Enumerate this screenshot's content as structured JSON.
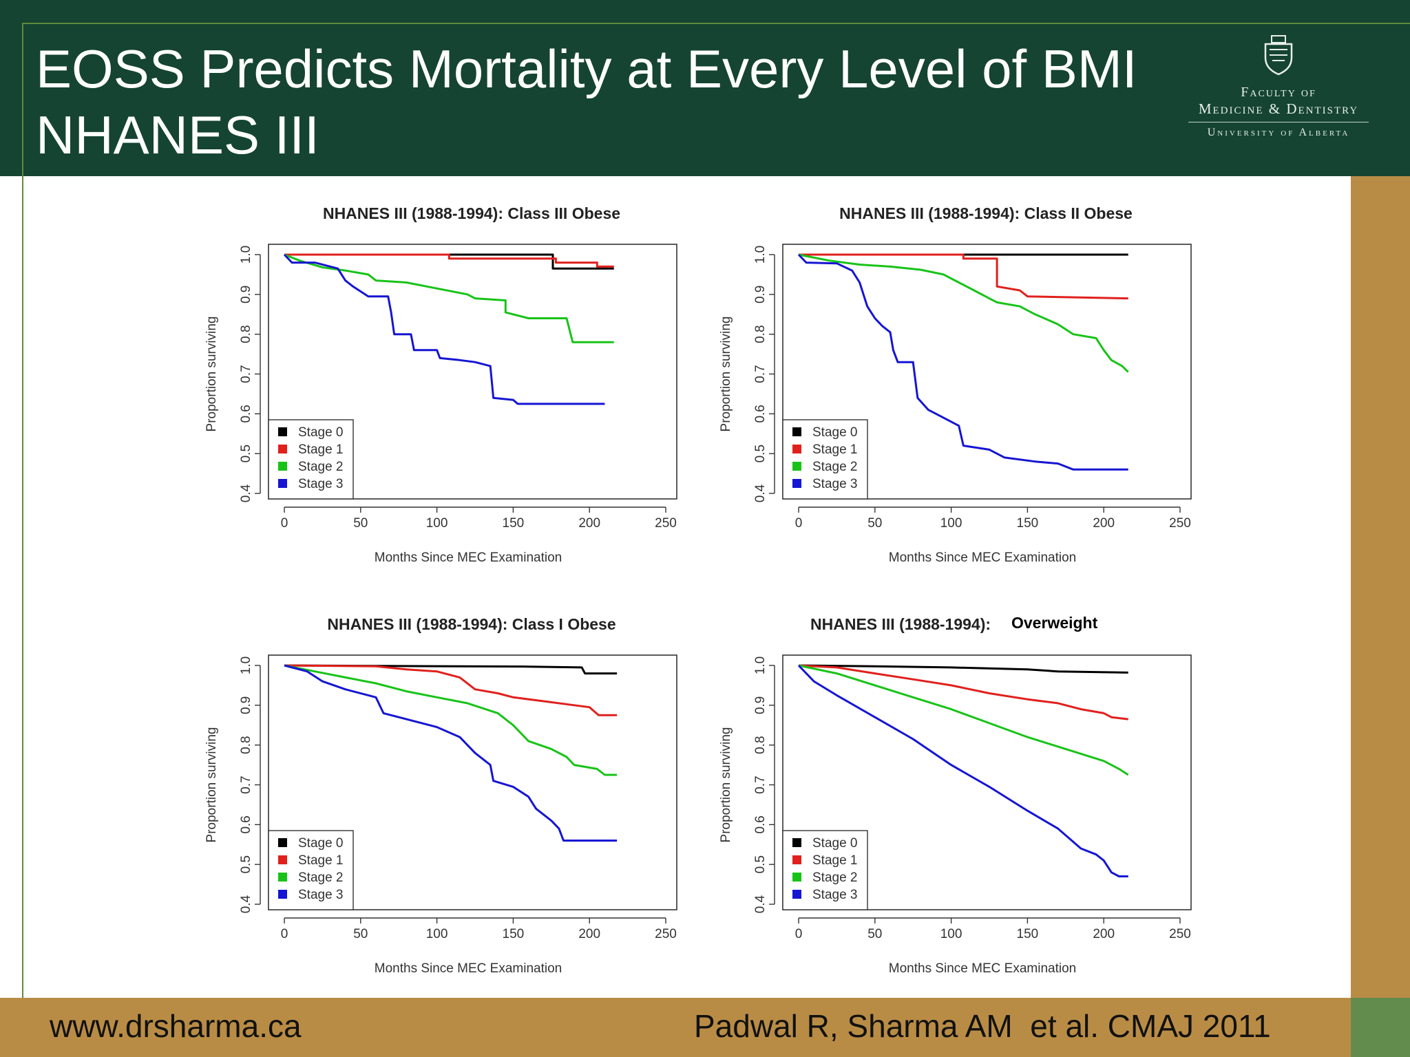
{
  "slide": {
    "title_line1": "EOSS Predicts Mortality at Every Level of BMI",
    "title_line2": "NHANES III",
    "logo_line1": "Faculty of",
    "logo_line2": "Medicine & Dentistry",
    "logo_line3": "University of Alberta",
    "footer_left": "www.drsharma.ca",
    "footer_right": "Padwal R, Sharma AM  et al. CMAJ 2011",
    "colors": {
      "header": "#154432",
      "accent_gold": "#b98c45",
      "accent_green": "#628b4e"
    }
  },
  "chart_data": [
    {
      "type": "line",
      "title": "NHANES III (1988-1994): Class III Obese",
      "xlabel": "Months Since MEC Examination",
      "ylabel": "Proportion surviving",
      "xlim": [
        0,
        250
      ],
      "ylim": [
        0.4,
        1.0
      ],
      "xticks": [
        "0",
        "50",
        "100",
        "150",
        "200",
        "250"
      ],
      "yticks": [
        "0.4",
        "0.5",
        "0.6",
        "0.7",
        "0.8",
        "0.9",
        "1.0"
      ],
      "legend": [
        "Stage 0",
        "Stage 1",
        "Stage 2",
        "Stage 3"
      ],
      "series": [
        {
          "name": "Stage 0",
          "color": "#000000",
          "points": [
            [
              0,
              1.0
            ],
            [
              176,
              1.0
            ],
            [
              176,
              0.965
            ],
            [
              216,
              0.965
            ]
          ]
        },
        {
          "name": "Stage 1",
          "color": "#e0201c",
          "points": [
            [
              0,
              1.0
            ],
            [
              108,
              1.0
            ],
            [
              108,
              0.99
            ],
            [
              178,
              0.99
            ],
            [
              178,
              0.98
            ],
            [
              205,
              0.98
            ],
            [
              205,
              0.97
            ],
            [
              216,
              0.97
            ]
          ]
        },
        {
          "name": "Stage 2",
          "color": "#18c318",
          "points": [
            [
              0,
              1.0
            ],
            [
              10,
              0.985
            ],
            [
              25,
              0.968
            ],
            [
              40,
              0.96
            ],
            [
              55,
              0.95
            ],
            [
              60,
              0.935
            ],
            [
              80,
              0.93
            ],
            [
              100,
              0.915
            ],
            [
              120,
              0.9
            ],
            [
              125,
              0.89
            ],
            [
              145,
              0.885
            ],
            [
              145,
              0.855
            ],
            [
              160,
              0.84
            ],
            [
              185,
              0.84
            ],
            [
              189,
              0.78
            ],
            [
              216,
              0.78
            ]
          ]
        },
        {
          "name": "Stage 3",
          "color": "#1515d3",
          "points": [
            [
              0,
              1.0
            ],
            [
              5,
              0.98
            ],
            [
              20,
              0.98
            ],
            [
              35,
              0.965
            ],
            [
              40,
              0.935
            ],
            [
              45,
              0.92
            ],
            [
              55,
              0.895
            ],
            [
              68,
              0.895
            ],
            [
              70,
              0.855
            ],
            [
              72,
              0.8
            ],
            [
              83,
              0.8
            ],
            [
              85,
              0.76
            ],
            [
              100,
              0.76
            ],
            [
              102,
              0.74
            ],
            [
              115,
              0.735
            ],
            [
              125,
              0.73
            ],
            [
              135,
              0.72
            ],
            [
              137,
              0.64
            ],
            [
              150,
              0.635
            ],
            [
              153,
              0.625
            ],
            [
              210,
              0.625
            ]
          ]
        }
      ]
    },
    {
      "type": "line",
      "title": "NHANES III (1988-1994): Class II Obese",
      "xlabel": "Months Since MEC Examination",
      "ylabel": "Proportion surviving",
      "xlim": [
        0,
        250
      ],
      "ylim": [
        0.4,
        1.0
      ],
      "xticks": [
        "0",
        "50",
        "100",
        "150",
        "200",
        "250"
      ],
      "yticks": [
        "0.4",
        "0.5",
        "0.6",
        "0.7",
        "0.8",
        "0.9",
        "1.0"
      ],
      "legend": [
        "Stage 0",
        "Stage 1",
        "Stage 2",
        "Stage 3"
      ],
      "series": [
        {
          "name": "Stage 0",
          "color": "#000000",
          "points": [
            [
              0,
              1.0
            ],
            [
              216,
              1.0
            ]
          ]
        },
        {
          "name": "Stage 1",
          "color": "#e0201c",
          "points": [
            [
              0,
              1.0
            ],
            [
              108,
              1.0
            ],
            [
              108,
              0.99
            ],
            [
              130,
              0.99
            ],
            [
              130,
              0.92
            ],
            [
              145,
              0.91
            ],
            [
              150,
              0.895
            ],
            [
              216,
              0.89
            ]
          ]
        },
        {
          "name": "Stage 2",
          "color": "#18c318",
          "points": [
            [
              0,
              1.0
            ],
            [
              20,
              0.985
            ],
            [
              40,
              0.975
            ],
            [
              60,
              0.97
            ],
            [
              80,
              0.962
            ],
            [
              95,
              0.95
            ],
            [
              105,
              0.93
            ],
            [
              115,
              0.91
            ],
            [
              130,
              0.88
            ],
            [
              145,
              0.87
            ],
            [
              155,
              0.85
            ],
            [
              170,
              0.825
            ],
            [
              180,
              0.8
            ],
            [
              195,
              0.79
            ],
            [
              200,
              0.76
            ],
            [
              205,
              0.735
            ],
            [
              212,
              0.72
            ],
            [
              216,
              0.705
            ]
          ]
        },
        {
          "name": "Stage 3",
          "color": "#1515d3",
          "points": [
            [
              0,
              1.0
            ],
            [
              5,
              0.98
            ],
            [
              25,
              0.978
            ],
            [
              35,
              0.96
            ],
            [
              40,
              0.93
            ],
            [
              45,
              0.87
            ],
            [
              50,
              0.84
            ],
            [
              55,
              0.82
            ],
            [
              60,
              0.805
            ],
            [
              62,
              0.76
            ],
            [
              65,
              0.73
            ],
            [
              75,
              0.73
            ],
            [
              78,
              0.64
            ],
            [
              85,
              0.61
            ],
            [
              95,
              0.59
            ],
            [
              105,
              0.57
            ],
            [
              108,
              0.52
            ],
            [
              125,
              0.51
            ],
            [
              135,
              0.49
            ],
            [
              155,
              0.48
            ],
            [
              170,
              0.475
            ],
            [
              180,
              0.46
            ],
            [
              216,
              0.46
            ]
          ]
        }
      ]
    },
    {
      "type": "line",
      "title": "NHANES III (1988-1994): Class I Obese",
      "xlabel": "Months Since MEC Examination",
      "ylabel": "Proportion surviving",
      "xlim": [
        0,
        250
      ],
      "ylim": [
        0.4,
        1.0
      ],
      "xticks": [
        "0",
        "50",
        "100",
        "150",
        "200",
        "250"
      ],
      "yticks": [
        "0.4",
        "0.5",
        "0.6",
        "0.7",
        "0.8",
        "0.9",
        "1.0"
      ],
      "legend": [
        "Stage 0",
        "Stage 1",
        "Stage 2",
        "Stage 3"
      ],
      "series": [
        {
          "name": "Stage 0",
          "color": "#000000",
          "points": [
            [
              0,
              1.0
            ],
            [
              160,
              0.997
            ],
            [
              195,
              0.995
            ],
            [
              197,
              0.98
            ],
            [
              218,
              0.98
            ]
          ]
        },
        {
          "name": "Stage 1",
          "color": "#e0201c",
          "points": [
            [
              0,
              1.0
            ],
            [
              60,
              0.998
            ],
            [
              80,
              0.99
            ],
            [
              100,
              0.985
            ],
            [
              115,
              0.97
            ],
            [
              125,
              0.94
            ],
            [
              140,
              0.93
            ],
            [
              150,
              0.92
            ],
            [
              170,
              0.91
            ],
            [
              190,
              0.9
            ],
            [
              200,
              0.895
            ],
            [
              206,
              0.875
            ],
            [
              218,
              0.875
            ]
          ]
        },
        {
          "name": "Stage 2",
          "color": "#18c318",
          "points": [
            [
              0,
              1.0
            ],
            [
              20,
              0.985
            ],
            [
              40,
              0.97
            ],
            [
              60,
              0.955
            ],
            [
              80,
              0.935
            ],
            [
              100,
              0.92
            ],
            [
              120,
              0.905
            ],
            [
              140,
              0.88
            ],
            [
              150,
              0.85
            ],
            [
              160,
              0.81
            ],
            [
              175,
              0.79
            ],
            [
              185,
              0.77
            ],
            [
              190,
              0.75
            ],
            [
              205,
              0.74
            ],
            [
              210,
              0.725
            ],
            [
              218,
              0.725
            ]
          ]
        },
        {
          "name": "Stage 3",
          "color": "#1515d3",
          "points": [
            [
              0,
              1.0
            ],
            [
              15,
              0.985
            ],
            [
              25,
              0.96
            ],
            [
              40,
              0.94
            ],
            [
              60,
              0.92
            ],
            [
              65,
              0.88
            ],
            [
              80,
              0.865
            ],
            [
              100,
              0.845
            ],
            [
              115,
              0.82
            ],
            [
              125,
              0.78
            ],
            [
              135,
              0.75
            ],
            [
              137,
              0.71
            ],
            [
              150,
              0.695
            ],
            [
              160,
              0.67
            ],
            [
              165,
              0.64
            ],
            [
              175,
              0.61
            ],
            [
              180,
              0.59
            ],
            [
              183,
              0.56
            ],
            [
              218,
              0.56
            ]
          ]
        }
      ]
    },
    {
      "type": "line",
      "title": "NHANES III (1988-1994):",
      "title_highlight": "Overweight",
      "xlabel": "Months Since MEC Examination",
      "ylabel": "Proportion surviving",
      "xlim": [
        0,
        250
      ],
      "ylim": [
        0.4,
        1.0
      ],
      "xticks": [
        "0",
        "50",
        "100",
        "150",
        "200",
        "250"
      ],
      "yticks": [
        "0.4",
        "0.5",
        "0.6",
        "0.7",
        "0.8",
        "0.9",
        "1.0"
      ],
      "legend": [
        "Stage 0",
        "Stage 1",
        "Stage 2",
        "Stage 3"
      ],
      "series": [
        {
          "name": "Stage 0",
          "color": "#000000",
          "points": [
            [
              0,
              1.0
            ],
            [
              50,
              0.998
            ],
            [
              100,
              0.995
            ],
            [
              150,
              0.99
            ],
            [
              170,
              0.985
            ],
            [
              216,
              0.982
            ]
          ]
        },
        {
          "name": "Stage 1",
          "color": "#e0201c",
          "points": [
            [
              0,
              1.0
            ],
            [
              25,
              0.995
            ],
            [
              50,
              0.98
            ],
            [
              75,
              0.965
            ],
            [
              100,
              0.95
            ],
            [
              125,
              0.93
            ],
            [
              150,
              0.915
            ],
            [
              170,
              0.905
            ],
            [
              185,
              0.89
            ],
            [
              200,
              0.88
            ],
            [
              205,
              0.87
            ],
            [
              216,
              0.865
            ]
          ]
        },
        {
          "name": "Stage 2",
          "color": "#18c318",
          "points": [
            [
              0,
              1.0
            ],
            [
              25,
              0.98
            ],
            [
              50,
              0.95
            ],
            [
              75,
              0.92
            ],
            [
              100,
              0.89
            ],
            [
              125,
              0.855
            ],
            [
              150,
              0.82
            ],
            [
              175,
              0.79
            ],
            [
              200,
              0.76
            ],
            [
              210,
              0.74
            ],
            [
              216,
              0.725
            ]
          ]
        },
        {
          "name": "Stage 3",
          "color": "#1515d3",
          "points": [
            [
              0,
              1.0
            ],
            [
              10,
              0.96
            ],
            [
              25,
              0.925
            ],
            [
              50,
              0.87
            ],
            [
              75,
              0.815
            ],
            [
              100,
              0.75
            ],
            [
              125,
              0.695
            ],
            [
              150,
              0.635
            ],
            [
              170,
              0.59
            ],
            [
              185,
              0.54
            ],
            [
              195,
              0.525
            ],
            [
              200,
              0.51
            ],
            [
              205,
              0.48
            ],
            [
              210,
              0.47
            ],
            [
              216,
              0.47
            ]
          ]
        }
      ]
    }
  ]
}
